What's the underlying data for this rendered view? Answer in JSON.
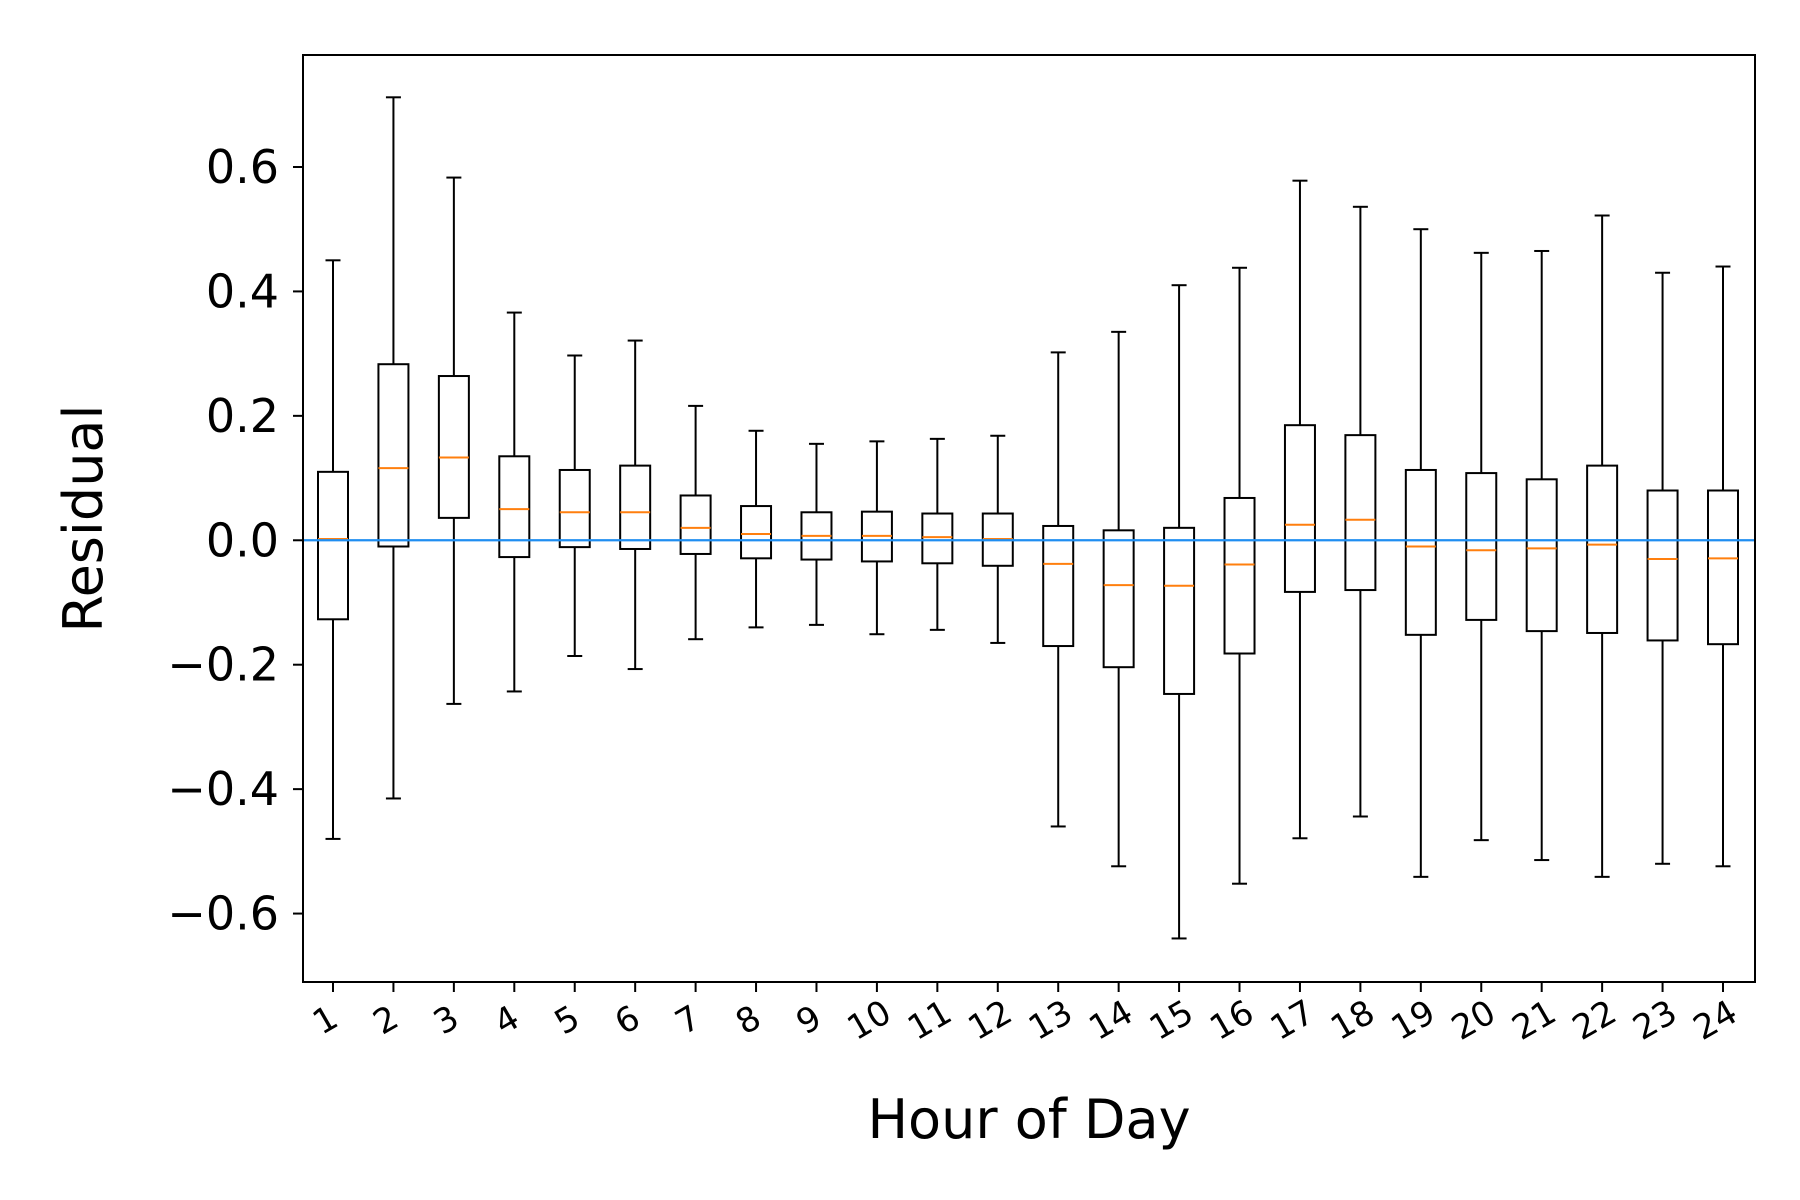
{
  "chart_data": {
    "type": "box",
    "xlabel": "Hour of Day",
    "ylabel": "Residual",
    "ylim": [
      -0.71,
      0.78
    ],
    "yticks": [
      -0.6,
      -0.4,
      -0.2,
      0.0,
      0.2,
      0.4,
      0.6
    ],
    "ytick_labels": [
      "−0.6",
      "−0.4",
      "−0.2",
      "0.0",
      "0.2",
      "0.4",
      "0.6"
    ],
    "categories": [
      "1",
      "2",
      "3",
      "4",
      "5",
      "6",
      "7",
      "8",
      "9",
      "10",
      "11",
      "12",
      "13",
      "14",
      "15",
      "16",
      "17",
      "18",
      "19",
      "20",
      "21",
      "22",
      "23",
      "24"
    ],
    "boxes": [
      {
        "whislo": -0.48,
        "q1": -0.127,
        "med": 0.002,
        "q3": 0.11,
        "whishi": 0.45
      },
      {
        "whislo": -0.415,
        "q1": -0.01,
        "med": 0.116,
        "q3": 0.283,
        "whishi": 0.712
      },
      {
        "whislo": -0.263,
        "q1": 0.036,
        "med": 0.133,
        "q3": 0.264,
        "whishi": 0.583
      },
      {
        "whislo": -0.243,
        "q1": -0.027,
        "med": 0.05,
        "q3": 0.135,
        "whishi": 0.366
      },
      {
        "whislo": -0.186,
        "q1": -0.011,
        "med": 0.045,
        "q3": 0.113,
        "whishi": 0.297
      },
      {
        "whislo": -0.207,
        "q1": -0.014,
        "med": 0.045,
        "q3": 0.12,
        "whishi": 0.321
      },
      {
        "whislo": -0.159,
        "q1": -0.022,
        "med": 0.02,
        "q3": 0.072,
        "whishi": 0.216
      },
      {
        "whislo": -0.14,
        "q1": -0.029,
        "med": 0.01,
        "q3": 0.055,
        "whishi": 0.176
      },
      {
        "whislo": -0.136,
        "q1": -0.031,
        "med": 0.007,
        "q3": 0.045,
        "whishi": 0.155
      },
      {
        "whislo": -0.151,
        "q1": -0.034,
        "med": 0.007,
        "q3": 0.046,
        "whishi": 0.159
      },
      {
        "whislo": -0.144,
        "q1": -0.037,
        "med": 0.005,
        "q3": 0.043,
        "whishi": 0.163
      },
      {
        "whislo": -0.165,
        "q1": -0.041,
        "med": 0.002,
        "q3": 0.043,
        "whishi": 0.168
      },
      {
        "whislo": -0.46,
        "q1": -0.17,
        "med": -0.038,
        "q3": 0.023,
        "whishi": 0.302
      },
      {
        "whislo": -0.524,
        "q1": -0.204,
        "med": -0.072,
        "q3": 0.016,
        "whishi": 0.335
      },
      {
        "whislo": -0.64,
        "q1": -0.247,
        "med": -0.073,
        "q3": 0.02,
        "whishi": 0.41
      },
      {
        "whislo": -0.552,
        "q1": -0.182,
        "med": -0.039,
        "q3": 0.068,
        "whishi": 0.438
      },
      {
        "whislo": -0.479,
        "q1": -0.083,
        "med": 0.025,
        "q3": 0.185,
        "whishi": 0.578
      },
      {
        "whislo": -0.444,
        "q1": -0.08,
        "med": 0.033,
        "q3": 0.169,
        "whishi": 0.536
      },
      {
        "whislo": -0.541,
        "q1": -0.152,
        "med": -0.01,
        "q3": 0.113,
        "whishi": 0.5
      },
      {
        "whislo": -0.482,
        "q1": -0.128,
        "med": -0.016,
        "q3": 0.108,
        "whishi": 0.462
      },
      {
        "whislo": -0.514,
        "q1": -0.146,
        "med": -0.013,
        "q3": 0.098,
        "whishi": 0.465
      },
      {
        "whislo": -0.541,
        "q1": -0.149,
        "med": -0.007,
        "q3": 0.12,
        "whishi": 0.522
      },
      {
        "whislo": -0.52,
        "q1": -0.161,
        "med": -0.03,
        "q3": 0.08,
        "whishi": 0.43
      },
      {
        "whislo": -0.524,
        "q1": -0.167,
        "med": -0.029,
        "q3": 0.08,
        "whishi": 0.44
      }
    ],
    "reference_line": {
      "y": 0.0,
      "color": "#1f8ef1"
    },
    "box_color": "#000000",
    "median_color": "#ff7f0e",
    "grid": false
  }
}
